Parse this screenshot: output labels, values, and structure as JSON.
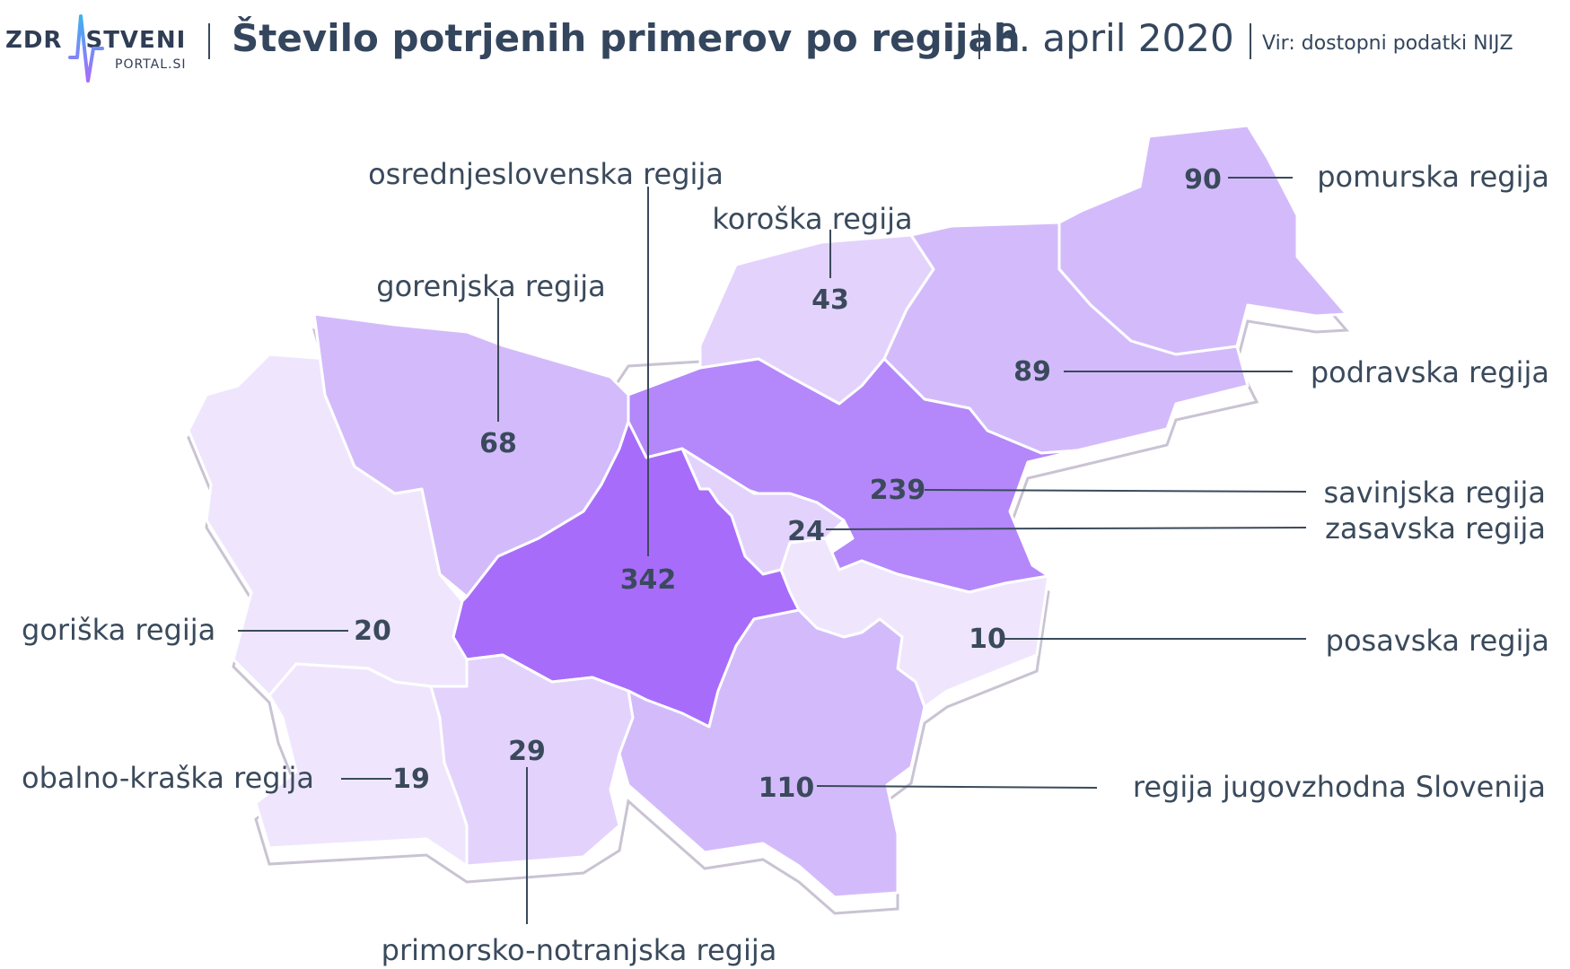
{
  "header": {
    "logo_main_left": "ZDR",
    "logo_main_right": "STVENI",
    "logo_sub": "PORTAL.SI",
    "title": "Število potrjenih primerov po regijah",
    "date": "8. april 2020",
    "source": "Vir: dostopni podatki NIJZ"
  },
  "colors": {
    "text": "#3a4a5c",
    "scale": [
      "#fbf8ff",
      "#efe6fd",
      "#e3d3fc",
      "#d3bbfb",
      "#c29ef9",
      "#b488fa",
      "#a86cfb"
    ]
  },
  "regions": [
    {
      "id": "pomurska",
      "label": "pomurska regija",
      "value": "90"
    },
    {
      "id": "koroska",
      "label": "koroška regija",
      "value": "43"
    },
    {
      "id": "podravska",
      "label": "podravska regija",
      "value": "89"
    },
    {
      "id": "gorenjska",
      "label": "gorenjska regija",
      "value": "68"
    },
    {
      "id": "osrednjeslovenska",
      "label": "osrednjeslovenska regija",
      "value": "342"
    },
    {
      "id": "savinjska",
      "label": "savinjska regija",
      "value": "239"
    },
    {
      "id": "zasavska",
      "label": "zasavska regija",
      "value": "24"
    },
    {
      "id": "goriska",
      "label": "goriška regija",
      "value": "20"
    },
    {
      "id": "posavska",
      "label": "posavska regija",
      "value": "10"
    },
    {
      "id": "obalno-kraska",
      "label": "obalno-kraška regija",
      "value": "19"
    },
    {
      "id": "primorsko-notranjska",
      "label": "primorsko-notranjska regija",
      "value": "29"
    },
    {
      "id": "jugovzhodna",
      "label": "regija jugovzhodna Slovenija",
      "value": "110"
    }
  ]
}
